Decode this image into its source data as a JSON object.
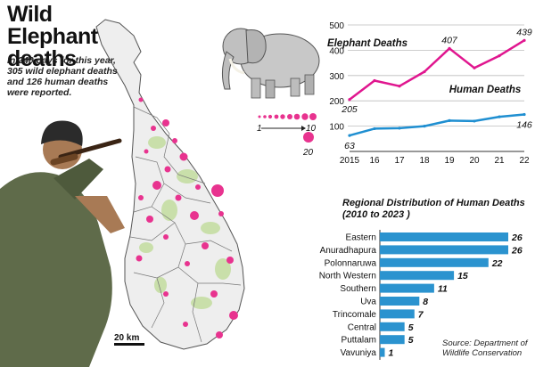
{
  "page": {
    "title": "Wild Elephant deaths",
    "lead": "In 240 days for this year, 305 wild elephant deaths and 126 human deaths were reported.",
    "source": "Source: Department of Wildlife Conservation"
  },
  "colors": {
    "elephant": "#e0168f",
    "human": "#1f8fd1",
    "bar": "#2b93cf",
    "island": "#eeeeee",
    "forest": "#c9dfaa",
    "dot": "#e8338f"
  },
  "icons": [
    "elephant-illustration",
    "hunter-with-rifle-illustration",
    "sri-lanka-map"
  ],
  "map": {
    "scale_label": "20 km",
    "legend_labels": [
      "1",
      "10",
      "20"
    ]
  },
  "chart_data": [
    {
      "type": "line",
      "x": [
        "2015",
        "16",
        "17",
        "18",
        "19",
        "20",
        "21",
        "22"
      ],
      "ylim": [
        0,
        500
      ],
      "yticks": [
        100,
        200,
        300,
        400,
        500
      ],
      "grid": true,
      "series": [
        {
          "name": "Elephant Deaths",
          "values": [
            205,
            280,
            258,
            315,
            407,
            330,
            378,
            439
          ],
          "labels": {
            "0": "205",
            "4": "407",
            "7": "439"
          }
        },
        {
          "name": "Human Deaths",
          "values": [
            63,
            90,
            92,
            100,
            122,
            120,
            137,
            146
          ],
          "labels": {
            "0": "63",
            "7": "146"
          }
        }
      ]
    },
    {
      "type": "bar",
      "orientation": "horizontal",
      "title": "Regional Distribution of Human Deaths (2010 to 2023 )",
      "categories": [
        "Eastern",
        "Anuradhapura",
        "Polonnaruwa",
        "North Western",
        "Southern",
        "Uva",
        "Trincomale",
        "Central",
        "Puttalam",
        "Vavuniya"
      ],
      "values": [
        26,
        26,
        22,
        15,
        11,
        8,
        7,
        5,
        5,
        1
      ]
    }
  ]
}
